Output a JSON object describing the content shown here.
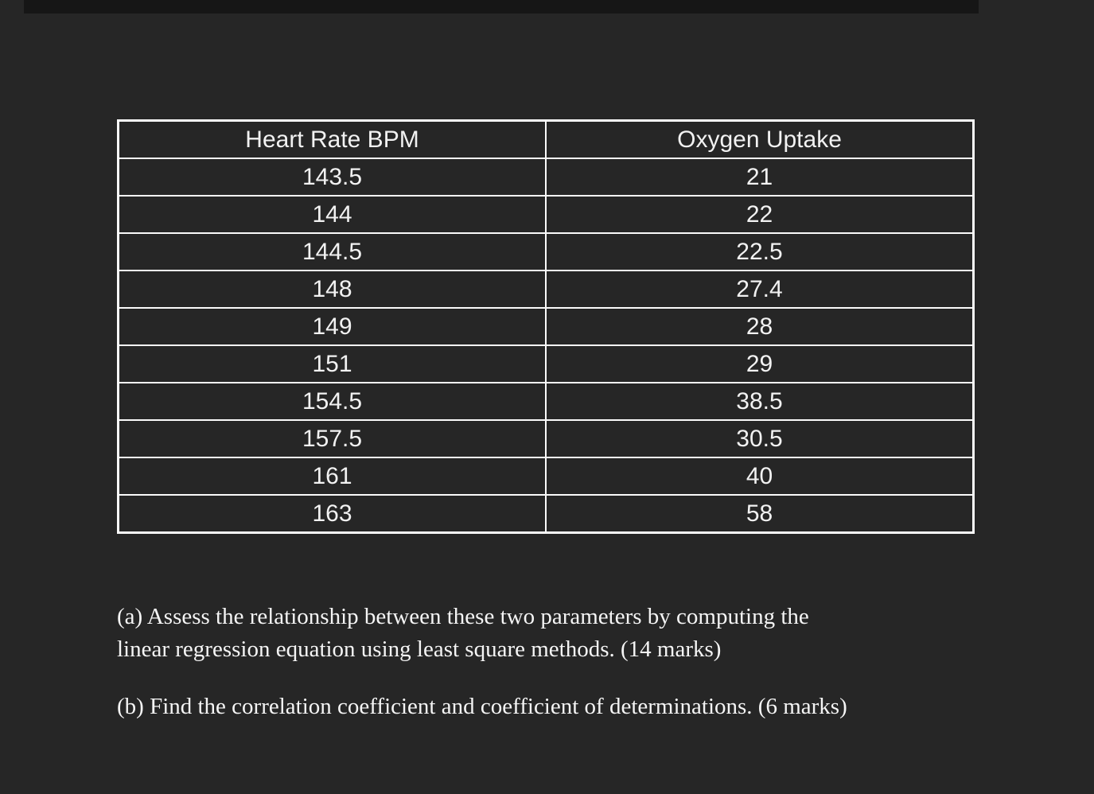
{
  "page": {
    "background_color": "#262626",
    "top_bar_color": "#161616",
    "text_color": "#f5f5f5",
    "table_border_color": "#fafafa"
  },
  "table": {
    "headers": [
      "Heart Rate BPM",
      "Oxygen Uptake"
    ],
    "rows": [
      [
        "143.5",
        "21"
      ],
      [
        "144",
        "22"
      ],
      [
        "144.5",
        "22.5"
      ],
      [
        "148",
        "27.4"
      ],
      [
        "149",
        "28"
      ],
      [
        "151",
        "29"
      ],
      [
        "154.5",
        "38.5"
      ],
      [
        "157.5",
        "30.5"
      ],
      [
        "161",
        "40"
      ],
      [
        "163",
        "58"
      ]
    ]
  },
  "questions": {
    "a_lines": [
      "(a)  Assess the relationship between these two parameters by computing the",
      "linear regression equation using least square methods. (14 marks)"
    ],
    "b": "(b) Find the correlation coefficient and coefficient of determinations.  (6 marks)"
  },
  "chart_data": {
    "type": "table",
    "title": "",
    "columns": [
      "Heart Rate BPM",
      "Oxygen Uptake"
    ],
    "rows": [
      [
        143.5,
        21
      ],
      [
        144,
        22
      ],
      [
        144.5,
        22.5
      ],
      [
        148,
        27.4
      ],
      [
        149,
        28
      ],
      [
        151,
        29
      ],
      [
        154.5,
        38.5
      ],
      [
        157.5,
        30.5
      ],
      [
        161,
        40
      ],
      [
        163,
        58
      ]
    ]
  }
}
